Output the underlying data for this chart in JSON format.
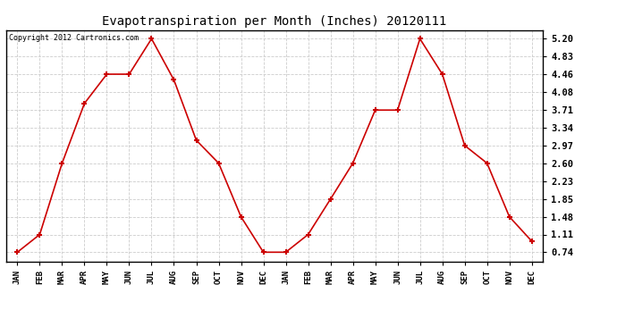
{
  "title": "Evapotranspiration per Month (Inches) 20120111",
  "copyright_text": "Copyright 2012 Cartronics.com",
  "months": [
    "JAN",
    "FEB",
    "MAR",
    "APR",
    "MAY",
    "JUN",
    "JUL",
    "AUG",
    "SEP",
    "OCT",
    "NOV",
    "DEC",
    "JAN",
    "FEB",
    "MAR",
    "APR",
    "MAY",
    "JUN",
    "JUL",
    "AUG",
    "SEP",
    "OCT",
    "NOV",
    "DEC"
  ],
  "values": [
    0.74,
    1.11,
    2.6,
    3.85,
    4.46,
    4.46,
    5.2,
    4.34,
    3.08,
    2.6,
    1.48,
    0.74,
    0.74,
    1.11,
    1.85,
    2.6,
    3.71,
    3.71,
    5.2,
    4.46,
    2.97,
    2.6,
    1.48,
    0.97
  ],
  "line_color": "#cc0000",
  "marker": "+",
  "marker_size": 5,
  "marker_color": "#cc0000",
  "bg_color": "#ffffff",
  "grid_color": "#cccccc",
  "yticks": [
    0.74,
    1.11,
    1.48,
    1.85,
    2.23,
    2.6,
    2.97,
    3.34,
    3.71,
    4.08,
    4.46,
    4.83,
    5.2
  ],
  "ylim": [
    0.55,
    5.38
  ]
}
